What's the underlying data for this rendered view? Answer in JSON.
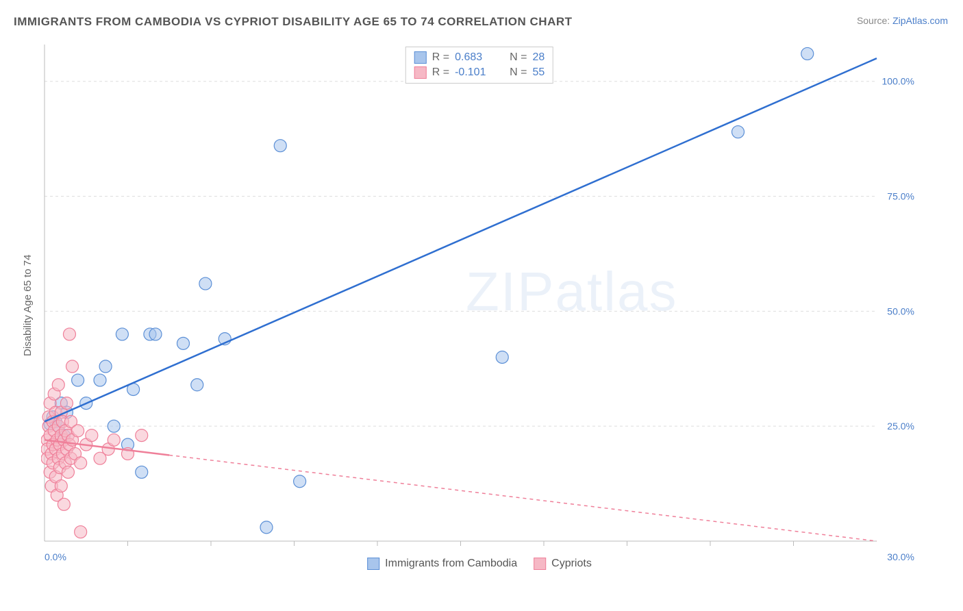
{
  "title": "IMMIGRANTS FROM CAMBODIA VS CYPRIOT DISABILITY AGE 65 TO 74 CORRELATION CHART",
  "source_prefix": "Source: ",
  "source_link": "ZipAtlas.com",
  "ylabel": "Disability Age 65 to 74",
  "watermark": "ZIPatlas",
  "chart": {
    "type": "scatter",
    "xlim": [
      0,
      30
    ],
    "ylim": [
      0,
      108
    ],
    "y_ticks": [
      25.0,
      50.0,
      75.0,
      100.0
    ],
    "x_tick_left": 0.0,
    "x_tick_right": 30.0,
    "x_minor_ticks": [
      3,
      6,
      9,
      12,
      15,
      18,
      21,
      24,
      27
    ],
    "background_color": "#ffffff",
    "grid_color": "#dddddd",
    "axis_color": "#bbbbbb",
    "tick_label_color": "#4a7ec9",
    "series": [
      {
        "name": "Immigrants from Cambodia",
        "color_fill": "#a8c5ec",
        "color_stroke": "#5b8fd6",
        "line_color": "#2f6fd0",
        "marker_radius": 9,
        "marker_opacity": 0.55,
        "r_value": "0.683",
        "n_value": "28",
        "trend": {
          "x1": 0,
          "y1": 26,
          "x2": 30,
          "y2": 105
        },
        "trend_dash_after_x": null,
        "points": [
          [
            0.2,
            25.5
          ],
          [
            0.3,
            27
          ],
          [
            0.4,
            26
          ],
          [
            0.5,
            25
          ],
          [
            0.6,
            30
          ],
          [
            0.7,
            23
          ],
          [
            1.2,
            35
          ],
          [
            1.5,
            30
          ],
          [
            2.0,
            35
          ],
          [
            2.2,
            38
          ],
          [
            2.5,
            25
          ],
          [
            2.8,
            45
          ],
          [
            3.0,
            21
          ],
          [
            3.2,
            33
          ],
          [
            3.5,
            15
          ],
          [
            3.8,
            45
          ],
          [
            4.0,
            45
          ],
          [
            5.0,
            43
          ],
          [
            5.5,
            34
          ],
          [
            5.8,
            56
          ],
          [
            6.5,
            44
          ],
          [
            8.0,
            3
          ],
          [
            8.5,
            86
          ],
          [
            9.2,
            13
          ],
          [
            16.5,
            40
          ],
          [
            25.0,
            89
          ],
          [
            27.5,
            106
          ],
          [
            0.8,
            28
          ]
        ]
      },
      {
        "name": "Cypriots",
        "color_fill": "#f6b8c5",
        "color_stroke": "#ef7f99",
        "line_color": "#ef7f99",
        "marker_radius": 9,
        "marker_opacity": 0.55,
        "r_value": "-0.101",
        "n_value": "55",
        "trend": {
          "x1": 0,
          "y1": 22,
          "x2": 30,
          "y2": 0
        },
        "trend_dash_after_x": 4.5,
        "points": [
          [
            0.1,
            22
          ],
          [
            0.1,
            20
          ],
          [
            0.1,
            18
          ],
          [
            0.15,
            25
          ],
          [
            0.15,
            27
          ],
          [
            0.2,
            15
          ],
          [
            0.2,
            23
          ],
          [
            0.2,
            30
          ],
          [
            0.25,
            19
          ],
          [
            0.25,
            12
          ],
          [
            0.3,
            21
          ],
          [
            0.3,
            26
          ],
          [
            0.3,
            17
          ],
          [
            0.35,
            24
          ],
          [
            0.35,
            32
          ],
          [
            0.4,
            20
          ],
          [
            0.4,
            28
          ],
          [
            0.4,
            14
          ],
          [
            0.45,
            22
          ],
          [
            0.45,
            10
          ],
          [
            0.5,
            25
          ],
          [
            0.5,
            18
          ],
          [
            0.5,
            34
          ],
          [
            0.55,
            21
          ],
          [
            0.55,
            16
          ],
          [
            0.6,
            23
          ],
          [
            0.6,
            28
          ],
          [
            0.6,
            12
          ],
          [
            0.65,
            19
          ],
          [
            0.65,
            26
          ],
          [
            0.7,
            22
          ],
          [
            0.7,
            8
          ],
          [
            0.75,
            24
          ],
          [
            0.75,
            17
          ],
          [
            0.8,
            20
          ],
          [
            0.8,
            30
          ],
          [
            0.85,
            15
          ],
          [
            0.85,
            23
          ],
          [
            0.9,
            21
          ],
          [
            0.9,
            45
          ],
          [
            0.95,
            18
          ],
          [
            0.95,
            26
          ],
          [
            1.0,
            22
          ],
          [
            1.0,
            38
          ],
          [
            1.1,
            19
          ],
          [
            1.2,
            24
          ],
          [
            1.3,
            2
          ],
          [
            1.3,
            17
          ],
          [
            1.5,
            21
          ],
          [
            1.7,
            23
          ],
          [
            2.0,
            18
          ],
          [
            2.3,
            20
          ],
          [
            2.5,
            22
          ],
          [
            3.0,
            19
          ],
          [
            3.5,
            23
          ]
        ]
      }
    ]
  }
}
